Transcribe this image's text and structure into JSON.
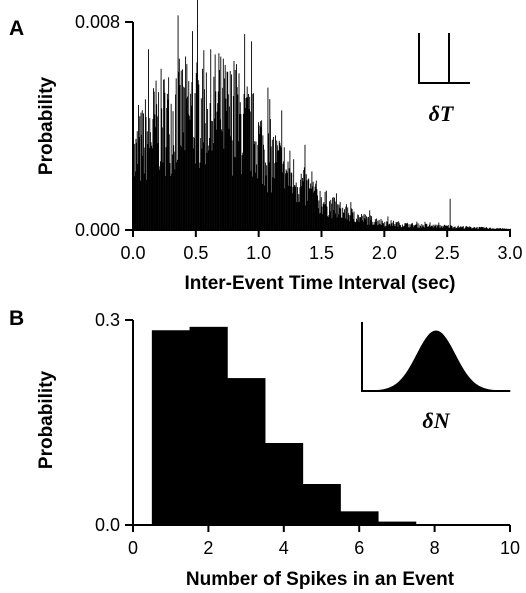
{
  "figure": {
    "panel_a_label": "A",
    "panel_b_label": "B",
    "inset_a_label": "δT",
    "inset_b_label": "δN"
  },
  "chart_data": [
    {
      "type": "bar",
      "panel": "A",
      "xlabel": "Inter-Event Time Interval (sec)",
      "ylabel": "Probability",
      "xlim": [
        0.0,
        3.0
      ],
      "ylim": [
        0.0,
        0.008
      ],
      "xticks": [
        "0.0",
        "0.5",
        "1.0",
        "1.5",
        "2.0",
        "2.5",
        "3.0"
      ],
      "yticks": [
        "0.000",
        "0.008"
      ],
      "grid": false,
      "envelope_x": [
        0.0,
        0.1,
        0.2,
        0.3,
        0.4,
        0.5,
        0.6,
        0.7,
        0.8,
        0.9,
        1.0,
        1.1,
        1.2,
        1.3,
        1.4,
        1.5,
        1.6,
        1.7,
        1.8,
        1.9,
        2.0,
        2.1,
        2.2,
        2.3,
        2.4,
        2.5,
        2.6,
        2.7,
        2.8,
        2.9,
        3.0
      ],
      "envelope_y": [
        0.0028,
        0.0038,
        0.0044,
        0.0046,
        0.0048,
        0.0049,
        0.005,
        0.0049,
        0.0046,
        0.0042,
        0.0036,
        0.003,
        0.0025,
        0.002,
        0.0016,
        0.0012,
        0.0009,
        0.0007,
        0.0005,
        0.0004,
        0.0003,
        0.00025,
        0.0002,
        0.00018,
        0.00016,
        0.00015,
        0.00012,
        0.0001,
        8e-05,
        6e-05,
        4e-05
      ],
      "peaks": [
        {
          "x": 0.68,
          "y": 0.0068
        },
        {
          "x": 0.55,
          "y": 0.0062
        },
        {
          "x": 0.8,
          "y": 0.0065
        },
        {
          "x": 1.18,
          "y": 0.0046
        },
        {
          "x": 2.52,
          "y": 0.0012
        }
      ],
      "inset": {
        "type": "spike",
        "label": "δT"
      }
    },
    {
      "type": "bar",
      "panel": "B",
      "xlabel": "Number of Spikes in an Event",
      "ylabel": "Probability",
      "xlim": [
        0,
        10
      ],
      "ylim": [
        0.0,
        0.3
      ],
      "xticks": [
        "0",
        "2",
        "4",
        "6",
        "8",
        "10"
      ],
      "yticks": [
        "0.0",
        "0.3"
      ],
      "grid": false,
      "bin_width": 1,
      "categories": [
        "1",
        "2",
        "3",
        "4",
        "5",
        "6",
        "7"
      ],
      "values": [
        0.285,
        0.29,
        0.215,
        0.12,
        0.06,
        0.02,
        0.005
      ],
      "inset": {
        "type": "gaussian",
        "label": "δN"
      }
    }
  ]
}
